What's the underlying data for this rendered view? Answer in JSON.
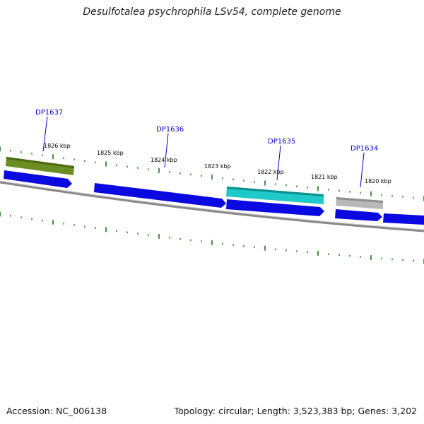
{
  "header": {
    "title": "Desulfotalea psychrophila LSv54, complete genome"
  },
  "footer": {
    "accession": "Accession: NC_006138",
    "info": "Topology: circular; Length: 3,523,383 bp; Genes: 3,202"
  },
  "scale": {
    "tick_labels": [
      "1826 kbp",
      "1825 kbp",
      "1824 kbp",
      "1823 kbp",
      "1822 kbp",
      "1821 kbp",
      "1820 kbp"
    ]
  },
  "genes": [
    {
      "name": "DP1637",
      "color": "#6b8e23"
    },
    {
      "name": "DP1636",
      "color": "#0000ee"
    },
    {
      "name": "DP1635",
      "color": "#20c8c8"
    },
    {
      "name": "DP1634",
      "color": "#b8b8b8"
    }
  ],
  "colors": {
    "tick": "#1a7a1a",
    "label": "#0000cc",
    "cds": "#0a0ae0",
    "backbone": "#888888"
  }
}
